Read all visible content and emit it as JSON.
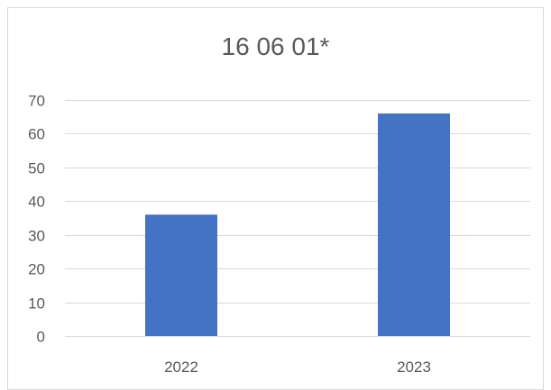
{
  "chart_data": {
    "type": "bar",
    "title": "16 06 01*",
    "xlabel": "",
    "ylabel": "",
    "categories": [
      "2022",
      "2023"
    ],
    "values": [
      36,
      66
    ],
    "ylim": [
      0,
      70
    ],
    "yticks": [
      0,
      10,
      20,
      30,
      40,
      50,
      60,
      70
    ],
    "grid": true,
    "legend": "none",
    "bar_color": "#4472c4",
    "grid_color": "#d9d9d9",
    "text_color": "#595959"
  }
}
